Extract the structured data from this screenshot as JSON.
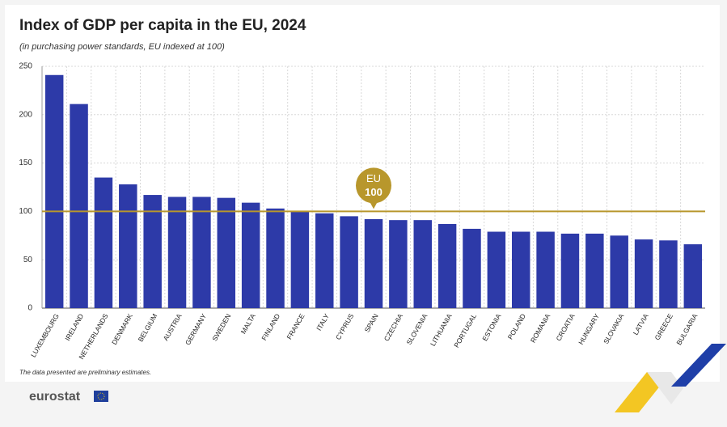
{
  "chart_data": {
    "type": "bar",
    "title": "Index of GDP per capita in the EU, 2024",
    "subtitle": "(in purchasing power standards, EU indexed at 100)",
    "categories": [
      "LUXEMBOURG",
      "IRELAND",
      "NETHERLANDS",
      "DENMARK",
      "BELGIUM",
      "AUSTRIA",
      "GERMANY",
      "SWEDEN",
      "MALTA",
      "FINLAND",
      "FRANCE",
      "ITALY",
      "CYPRUS",
      "SPAIN",
      "CZECHIA",
      "SLOVENIA",
      "LITHUANIA",
      "PORTUGAL",
      "ESTONIA",
      "POLAND",
      "ROMANIA",
      "CROATIA",
      "HUNGARY",
      "SLOVAKIA",
      "LATVIA",
      "GREECE",
      "BULGARIA"
    ],
    "values": [
      241,
      211,
      135,
      128,
      117,
      115,
      115,
      114,
      109,
      103,
      100,
      98,
      95,
      92,
      91,
      91,
      87,
      82,
      79,
      79,
      79,
      77,
      77,
      75,
      71,
      70,
      66
    ],
    "color": "#2d3aa8",
    "ylim": [
      0,
      250
    ],
    "yticks": [
      0,
      50,
      100,
      150,
      200,
      250
    ],
    "grid": true,
    "reference_line": {
      "value": 100,
      "label": "EU",
      "value_label": "100",
      "color": "#b8972c"
    },
    "note": "The data presented are preliminary estimates.",
    "source": "eurostat"
  }
}
